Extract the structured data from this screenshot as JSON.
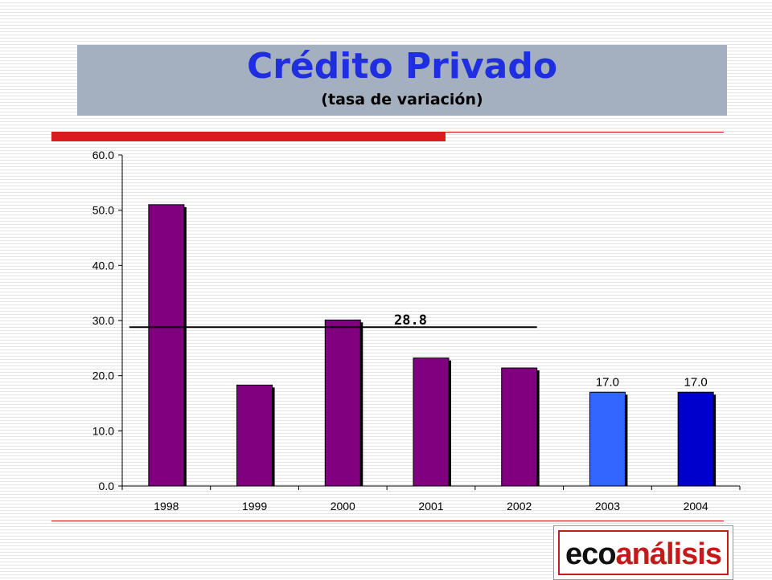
{
  "slide": {
    "title": "Crédito Privado",
    "subtitle": "(tasa de variación)"
  },
  "logo": {
    "part1": "eco",
    "part2": "análisis"
  },
  "colors": {
    "title_bg": "#a4b0bf",
    "title_text": "#1f2ee0",
    "accent_red": "#d91c1c",
    "bar_purple": "#800080",
    "bar_light_blue": "#3366ff",
    "bar_dark_blue": "#0000cc"
  },
  "chart_data": {
    "type": "bar",
    "title": "",
    "xlabel": "",
    "ylabel": "",
    "categories": [
      "1998",
      "1999",
      "2000",
      "2001",
      "2002",
      "2003",
      "2004"
    ],
    "values": [
      51.0,
      18.3,
      30.1,
      23.2,
      21.4,
      17.0,
      17.0
    ],
    "bar_colors": [
      "#800080",
      "#800080",
      "#800080",
      "#800080",
      "#800080",
      "#3366ff",
      "#0000cc"
    ],
    "data_labels": [
      "",
      "",
      "",
      "",
      "",
      "17.0",
      "17.0"
    ],
    "ylim": [
      0,
      60
    ],
    "yticks": [
      "0.0",
      "10.0",
      "20.0",
      "30.0",
      "40.0",
      "50.0",
      "60.0"
    ],
    "grid": false,
    "reference_line": {
      "value": 28.8,
      "label": "28.8",
      "from_category": "1998",
      "to_category": "2002"
    }
  }
}
